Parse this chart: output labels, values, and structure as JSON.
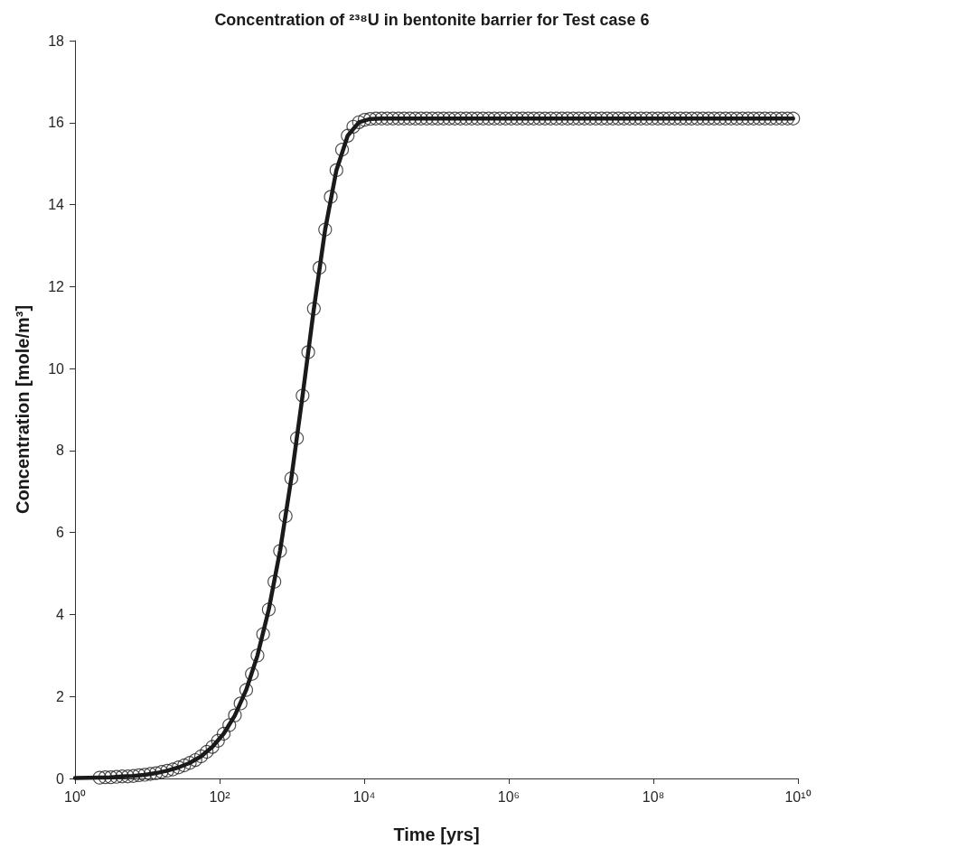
{
  "chart_data": {
    "type": "line",
    "title": "Concentration of ²³⁸U in bentonite barrier for Test case 6",
    "xlabel": "Time [yrs]",
    "ylabel": "Concentration [mole/m³]",
    "log": "x",
    "grid": false,
    "xlim": [
      1,
      10000000000
    ],
    "xticks": [
      {
        "value": 1,
        "label": "10⁰"
      },
      {
        "value": 100,
        "label": "10²"
      },
      {
        "value": 10000,
        "label": "10⁴"
      },
      {
        "value": 1000000,
        "label": "10⁶"
      },
      {
        "value": 100000000,
        "label": "10⁸"
      },
      {
        "value": 10000000000,
        "label": "10¹⁰"
      }
    ],
    "ylim": [
      0,
      18
    ],
    "yticks": [
      0,
      2,
      4,
      6,
      8,
      10,
      12,
      14,
      16,
      18
    ],
    "series": [
      {
        "type": "line",
        "color": "#1a1a1a",
        "marker": "none",
        "line_style": "solid",
        "x": [
          1,
          2.188,
          3.133,
          4.487,
          6.427,
          9.204,
          13.18,
          18.88,
          27.04,
          38.73,
          55.46,
          79.43,
          113.8,
          162.9,
          233.3,
          334.2,
          478.6,
          685.5,
          981.7,
          1406,
          2014,
          2884,
          4130,
          5916,
          8472,
          12134,
          17380,
          24890,
          35650,
          51050,
          73110,
          104700,
          150000,
          308000,
          631000,
          1294000,
          2655000,
          5445000,
          11170000,
          22910000,
          46990000,
          96380000,
          197700000,
          405500000,
          831800000,
          1706000000,
          3499000000,
          8590000000
        ],
        "values": [
          0.01,
          0.02,
          0.03,
          0.05,
          0.06,
          0.09,
          0.13,
          0.19,
          0.27,
          0.38,
          0.54,
          0.77,
          1.09,
          1.54,
          2.16,
          3,
          4.12,
          5.55,
          7.32,
          9.34,
          11.46,
          13.39,
          14.84,
          15.68,
          16.01,
          16.09,
          16.1,
          16.1,
          16.1,
          16.1,
          16.1,
          16.1,
          16.1,
          16.1,
          16.1,
          16.1,
          16.1,
          16.1,
          16.1,
          16.1,
          16.1,
          16.1,
          16.1,
          16.1,
          16.1,
          16.1,
          16.1,
          16.1
        ]
      },
      {
        "type": "scatter",
        "color": "#222222",
        "marker": "circle",
        "x": [
          2.188,
          2.618,
          3.133,
          3.75,
          4.487,
          5.37,
          6.427,
          7.691,
          9.204,
          11.02,
          13.18,
          15.78,
          18.88,
          22.59,
          27.04,
          32.36,
          38.73,
          46.34,
          55.46,
          66.37,
          79.43,
          95.06,
          113.8,
          136.1,
          162.9,
          195,
          233.3,
          279.3,
          334.2,
          399.9,
          478.6,
          572.8,
          685.5,
          820.4,
          981.7,
          1175,
          1406,
          1683,
          2014,
          2410,
          2884,
          3451,
          4130,
          4943,
          5916,
          7079,
          8472,
          10139,
          12134,
          14520,
          17380,
          20800,
          24890,
          29790,
          35650,
          42660,
          51050,
          61090,
          73110,
          87500,
          104700,
          125300,
          150000,
          179500,
          214800,
          257000,
          307600,
          368100,
          440600,
          527200,
          631000,
          755100,
          903600,
          1081000,
          1294000,
          1549000,
          1854000,
          2218000,
          2655000,
          3177000,
          3802000,
          4550000,
          5445000,
          6516000,
          7798000,
          9333000,
          11170000,
          13370000,
          16000000,
          19140000,
          22910000,
          27420000,
          32810000,
          39260000,
          46990000,
          56230000,
          67300000,
          80540000,
          96380000,
          115300000,
          138000000,
          165200000,
          197700000,
          236600000,
          283100000,
          338800000,
          405500000,
          485300000,
          580800000,
          695000000,
          831800000,
          995400000,
          1191000000,
          1426000000,
          1706000000,
          2042000000,
          2443000000,
          2924000000,
          3499000000,
          4188000000,
          5012000000,
          5998000000,
          7178000000,
          8590000000
        ],
        "values": [
          0.02,
          0.03,
          0.03,
          0.04,
          0.05,
          0.05,
          0.06,
          0.08,
          0.09,
          0.11,
          0.13,
          0.16,
          0.19,
          0.22,
          0.27,
          0.32,
          0.38,
          0.45,
          0.54,
          0.65,
          0.77,
          0.92,
          1.09,
          1.3,
          1.54,
          1.83,
          2.16,
          2.55,
          3,
          3.52,
          4.12,
          4.8,
          5.55,
          6.4,
          7.32,
          8.3,
          9.34,
          10.4,
          11.46,
          12.46,
          13.39,
          14.19,
          14.84,
          15.34,
          15.68,
          15.9,
          16.01,
          16.07,
          16.09,
          16.1,
          16.1,
          16.1,
          16.1,
          16.1,
          16.1,
          16.1,
          16.1,
          16.1,
          16.1,
          16.1,
          16.1,
          16.1,
          16.1,
          16.1,
          16.1,
          16.1,
          16.1,
          16.1,
          16.1,
          16.1,
          16.1,
          16.1,
          16.1,
          16.1,
          16.1,
          16.1,
          16.1,
          16.1,
          16.1,
          16.1,
          16.1,
          16.1,
          16.1,
          16.1,
          16.1,
          16.1,
          16.1,
          16.1,
          16.1,
          16.1,
          16.1,
          16.1,
          16.1,
          16.1,
          16.1,
          16.1,
          16.1,
          16.1,
          16.1,
          16.1,
          16.1,
          16.1,
          16.1,
          16.1,
          16.1,
          16.1,
          16.1,
          16.1,
          16.1,
          16.1,
          16.1,
          16.1,
          16.1,
          16.1,
          16.1,
          16.1,
          16.1,
          16.1,
          16.1,
          16.1,
          16.1,
          16.1,
          16.1,
          16.1
        ]
      }
    ]
  }
}
